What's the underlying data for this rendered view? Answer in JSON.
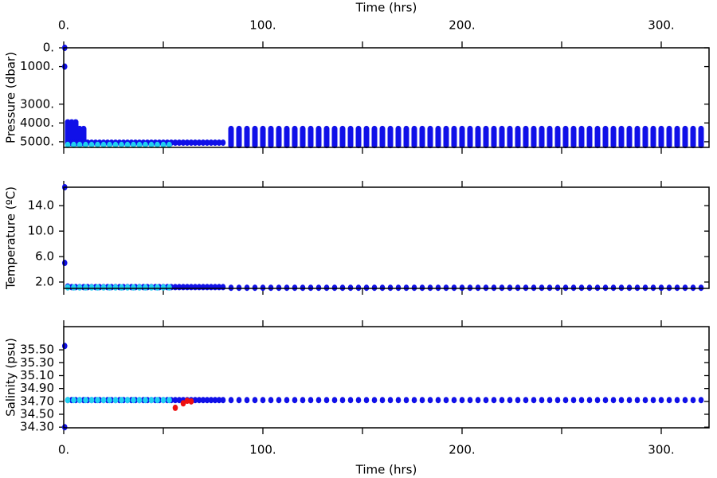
{
  "chart_data": [
    {
      "type": "scatter",
      "ylabel": "Pressure (dbar)",
      "xlabel": "Time (hrs)",
      "xtick_labels": "top",
      "xlim": [
        0,
        324
      ],
      "xticks": [
        {
          "value": 0,
          "label": "0."
        },
        {
          "value": 100,
          "label": "100."
        },
        {
          "value": 200,
          "label": "200."
        },
        {
          "value": 300,
          "label": "300."
        }
      ],
      "xminor": [
        50,
        150,
        250
      ],
      "ylim": [
        5300,
        0
      ],
      "yticks": [
        {
          "value": 0,
          "label": "0."
        },
        {
          "value": 1000,
          "label": "1000."
        },
        {
          "value": 3000,
          "label": "3000."
        },
        {
          "value": 4000,
          "label": "4000."
        },
        {
          "value": 5000,
          "label": "5000."
        }
      ],
      "series": [
        {
          "type": "range",
          "color": "#1010e8",
          "x": [
            84,
            88,
            92,
            96,
            100,
            104,
            108,
            112,
            116,
            120,
            124,
            128,
            132,
            136,
            140,
            144,
            148,
            152,
            156,
            160,
            164,
            168,
            172,
            176,
            180,
            184,
            188,
            192,
            196,
            200,
            204,
            208,
            212,
            216,
            220,
            224,
            228,
            232,
            236,
            240,
            244,
            248,
            252,
            256,
            260,
            264,
            268,
            272,
            276,
            280,
            284,
            288,
            292,
            296,
            300,
            304,
            308,
            312,
            316,
            320
          ],
          "low": [
            4300,
            4300,
            4300,
            4300,
            4300,
            4300,
            4300,
            4300,
            4300,
            4300,
            4300,
            4300,
            4300,
            4300,
            4300,
            4300,
            4300,
            4300,
            4300,
            4300,
            4300,
            4300,
            4300,
            4300,
            4300,
            4300,
            4300,
            4300,
            4300,
            4300,
            4300,
            4300,
            4300,
            4300,
            4300,
            4300,
            4300,
            4300,
            4300,
            4300,
            4300,
            4300,
            4300,
            4300,
            4300,
            4300,
            4300,
            4300,
            4300,
            4300,
            4300,
            4300,
            4300,
            4300,
            4300,
            4300,
            4300,
            4300,
            4300,
            4300
          ],
          "high": [
            5200,
            5200,
            5200,
            5200,
            5200,
            5200,
            5200,
            5200,
            5200,
            5200,
            5200,
            5200,
            5200,
            5200,
            5200,
            5200,
            5200,
            5200,
            5200,
            5200,
            5200,
            5200,
            5200,
            5200,
            5200,
            5200,
            5200,
            5200,
            5200,
            5200,
            5200,
            5200,
            5200,
            5200,
            5200,
            5200,
            5200,
            5200,
            5200,
            5200,
            5200,
            5200,
            5200,
            5200,
            5200,
            5200,
            5200,
            5200,
            5200,
            5200,
            5200,
            5200,
            5200,
            5200,
            5200,
            5200,
            5200,
            5200,
            5200,
            5200
          ]
        },
        {
          "type": "range",
          "color": "#1010e8",
          "x": [
            2,
            4,
            6,
            8,
            10
          ],
          "low": [
            3950,
            3950,
            3950,
            4300,
            4300
          ],
          "high": [
            5100,
            5100,
            5100,
            5100,
            5100
          ]
        },
        {
          "type": "scatter",
          "color": "#1010e8",
          "x": [
            2,
            4,
            6,
            8,
            10,
            12,
            14,
            16,
            18,
            20,
            22,
            24,
            26,
            28,
            30,
            32,
            34,
            36,
            38,
            40,
            42,
            44,
            46,
            48,
            50,
            52,
            54,
            56,
            58,
            60,
            62,
            64,
            66,
            68,
            70,
            72,
            74,
            76,
            78,
            80
          ],
          "values": [
            5050,
            5050,
            5050,
            5050,
            5050,
            5050,
            5050,
            5050,
            5050,
            5050,
            5050,
            5050,
            5050,
            5050,
            5050,
            5050,
            5050,
            5050,
            5050,
            5050,
            5050,
            5050,
            5050,
            5050,
            5050,
            5050,
            5050,
            5050,
            5050,
            5050,
            5050,
            5050,
            5050,
            5050,
            5050,
            5050,
            5050,
            5050,
            5050,
            5050
          ]
        },
        {
          "type": "scatter",
          "color": "#20d0f0",
          "x": [
            2,
            5,
            8,
            11,
            14,
            17,
            20,
            23,
            26,
            29,
            32,
            35,
            38,
            41,
            44,
            47,
            50,
            53
          ],
          "values": [
            5170,
            5170,
            5170,
            5170,
            5170,
            5170,
            5170,
            5170,
            5170,
            5170,
            5170,
            5170,
            5170,
            5170,
            5170,
            5170,
            5170,
            5170
          ]
        },
        {
          "type": "scatter",
          "color": "#1010e8",
          "x": [
            0.5,
            0.5
          ],
          "values": [
            0,
            1000
          ]
        }
      ]
    },
    {
      "type": "scatter",
      "ylabel": "Temperature (ºC)",
      "xtick_labels": "none",
      "xlim": [
        0,
        324
      ],
      "xticks": [
        0,
        100,
        200,
        300
      ],
      "xminor": [
        50,
        150,
        250
      ],
      "ylim": [
        1.0,
        16.9
      ],
      "yticks": [
        {
          "value": 2,
          "label": "2.0"
        },
        {
          "value": 6,
          "label": "6.0"
        },
        {
          "value": 10,
          "label": "10.0"
        },
        {
          "value": 14,
          "label": "14.0"
        }
      ],
      "series": [
        {
          "type": "scatter",
          "color": "#1010e8",
          "x": [
            84,
            88,
            92,
            96,
            100,
            104,
            108,
            112,
            116,
            120,
            124,
            128,
            132,
            136,
            140,
            144,
            148,
            152,
            156,
            160,
            164,
            168,
            172,
            176,
            180,
            184,
            188,
            192,
            196,
            200,
            204,
            208,
            212,
            216,
            220,
            224,
            228,
            232,
            236,
            240,
            244,
            248,
            252,
            256,
            260,
            264,
            268,
            272,
            276,
            280,
            284,
            288,
            292,
            296,
            300,
            304,
            308,
            312,
            316,
            320
          ],
          "values": [
            1.1,
            1.1,
            1.1,
            1.1,
            1.1,
            1.1,
            1.1,
            1.1,
            1.1,
            1.1,
            1.1,
            1.1,
            1.1,
            1.1,
            1.1,
            1.1,
            1.1,
            1.1,
            1.1,
            1.1,
            1.1,
            1.1,
            1.1,
            1.1,
            1.1,
            1.1,
            1.1,
            1.1,
            1.1,
            1.1,
            1.1,
            1.1,
            1.1,
            1.1,
            1.1,
            1.1,
            1.1,
            1.1,
            1.1,
            1.1,
            1.1,
            1.1,
            1.1,
            1.1,
            1.1,
            1.1,
            1.1,
            1.1,
            1.1,
            1.1,
            1.1,
            1.1,
            1.1,
            1.1,
            1.1,
            1.1,
            1.1,
            1.1,
            1.1,
            1.1
          ]
        },
        {
          "type": "scatter",
          "color": "#1010e8",
          "x": [
            2,
            4,
            6,
            8,
            10,
            12,
            14,
            16,
            18,
            20,
            22,
            24,
            26,
            28,
            30,
            32,
            34,
            36,
            38,
            40,
            42,
            44,
            46,
            48,
            50,
            52,
            54,
            56,
            58,
            60,
            62,
            64,
            66,
            68,
            70,
            72,
            74,
            76,
            78,
            80
          ],
          "values": [
            1.3,
            1.2,
            1.2,
            1.2,
            1.2,
            1.2,
            1.2,
            1.2,
            1.2,
            1.2,
            1.2,
            1.2,
            1.2,
            1.2,
            1.2,
            1.2,
            1.2,
            1.2,
            1.2,
            1.2,
            1.2,
            1.2,
            1.2,
            1.2,
            1.2,
            1.2,
            1.2,
            1.2,
            1.2,
            1.2,
            1.2,
            1.2,
            1.2,
            1.2,
            1.2,
            1.2,
            1.2,
            1.2,
            1.2,
            1.2
          ]
        },
        {
          "type": "scatter",
          "color": "#20d0f0",
          "x": [
            2,
            5,
            8,
            11,
            14,
            17,
            20,
            23,
            26,
            29,
            32,
            35,
            38,
            41,
            44,
            47,
            50,
            53
          ],
          "values": [
            1.15,
            1.15,
            1.15,
            1.15,
            1.15,
            1.15,
            1.15,
            1.15,
            1.15,
            1.15,
            1.15,
            1.15,
            1.15,
            1.15,
            1.15,
            1.15,
            1.15,
            1.15
          ]
        },
        {
          "type": "scatter",
          "color": "#1010e8",
          "x": [
            0.5,
            0.5
          ],
          "values": [
            16.9,
            5.0
          ]
        }
      ]
    },
    {
      "type": "scatter",
      "ylabel": "Salinity (psu)",
      "xlabel": "Time (hrs)",
      "xtick_labels": "bottom",
      "xlim": [
        0,
        324
      ],
      "xticks": [
        {
          "value": 0,
          "label": "0."
        },
        {
          "value": 100,
          "label": "100."
        },
        {
          "value": 200,
          "label": "200."
        },
        {
          "value": 300,
          "label": "300."
        }
      ],
      "xminor": [
        50,
        150,
        250
      ],
      "ylim": [
        34.29,
        35.86
      ],
      "yticks": [
        {
          "value": 34.3,
          "label": "34.30"
        },
        {
          "value": 34.5,
          "label": "34.50"
        },
        {
          "value": 34.7,
          "label": "34.70"
        },
        {
          "value": 34.9,
          "label": "34.90"
        },
        {
          "value": 35.1,
          "label": "35.10"
        },
        {
          "value": 35.3,
          "label": "35.30"
        },
        {
          "value": 35.5,
          "label": "35.50"
        }
      ],
      "series": [
        {
          "type": "scatter",
          "color": "#1010e8",
          "x": [
            84,
            88,
            92,
            96,
            100,
            104,
            108,
            112,
            116,
            120,
            124,
            128,
            132,
            136,
            140,
            144,
            148,
            152,
            156,
            160,
            164,
            168,
            172,
            176,
            180,
            184,
            188,
            192,
            196,
            200,
            204,
            208,
            212,
            216,
            220,
            224,
            228,
            232,
            236,
            240,
            244,
            248,
            252,
            256,
            260,
            264,
            268,
            272,
            276,
            280,
            284,
            288,
            292,
            296,
            300,
            304,
            308,
            312,
            316,
            320
          ],
          "values": [
            34.72,
            34.72,
            34.72,
            34.72,
            34.72,
            34.72,
            34.72,
            34.72,
            34.72,
            34.72,
            34.72,
            34.72,
            34.72,
            34.72,
            34.72,
            34.72,
            34.72,
            34.72,
            34.72,
            34.72,
            34.72,
            34.72,
            34.72,
            34.72,
            34.72,
            34.72,
            34.72,
            34.72,
            34.72,
            34.72,
            34.72,
            34.72,
            34.72,
            34.72,
            34.72,
            34.72,
            34.72,
            34.72,
            34.72,
            34.72,
            34.72,
            34.72,
            34.72,
            34.72,
            34.72,
            34.72,
            34.72,
            34.72,
            34.72,
            34.72,
            34.72,
            34.72,
            34.72,
            34.72,
            34.72,
            34.72,
            34.72,
            34.72,
            34.72,
            34.72
          ]
        },
        {
          "type": "scatter",
          "color": "#1010e8",
          "x": [
            2,
            4,
            6,
            8,
            10,
            12,
            14,
            16,
            18,
            20,
            22,
            24,
            26,
            28,
            30,
            32,
            34,
            36,
            38,
            40,
            42,
            44,
            46,
            48,
            50,
            52,
            54,
            56,
            58,
            60,
            62,
            64,
            66,
            68,
            70,
            72,
            74,
            76,
            78,
            80
          ],
          "values": [
            34.72,
            34.72,
            34.72,
            34.72,
            34.72,
            34.72,
            34.72,
            34.72,
            34.72,
            34.72,
            34.72,
            34.72,
            34.72,
            34.72,
            34.72,
            34.72,
            34.72,
            34.72,
            34.72,
            34.72,
            34.72,
            34.72,
            34.72,
            34.72,
            34.72,
            34.72,
            34.72,
            34.72,
            34.72,
            34.72,
            34.72,
            34.72,
            34.72,
            34.72,
            34.72,
            34.72,
            34.72,
            34.72,
            34.72,
            34.72
          ]
        },
        {
          "type": "scatter",
          "color": "#20d0f0",
          "x": [
            2,
            5,
            8,
            11,
            14,
            17,
            20,
            23,
            26,
            29,
            32,
            35,
            38,
            41,
            44,
            47,
            50,
            53
          ],
          "values": [
            34.72,
            34.72,
            34.72,
            34.72,
            34.72,
            34.72,
            34.72,
            34.72,
            34.72,
            34.72,
            34.72,
            34.72,
            34.72,
            34.72,
            34.72,
            34.72,
            34.72,
            34.72
          ]
        },
        {
          "type": "scatter",
          "color": "#ee1010",
          "x": [
            56,
            60,
            62,
            64
          ],
          "values": [
            34.6,
            34.67,
            34.71,
            34.7
          ]
        },
        {
          "type": "scatter",
          "color": "#1010e8",
          "x": [
            0.5,
            0.5
          ],
          "values": [
            35.56,
            34.3
          ]
        }
      ]
    }
  ]
}
